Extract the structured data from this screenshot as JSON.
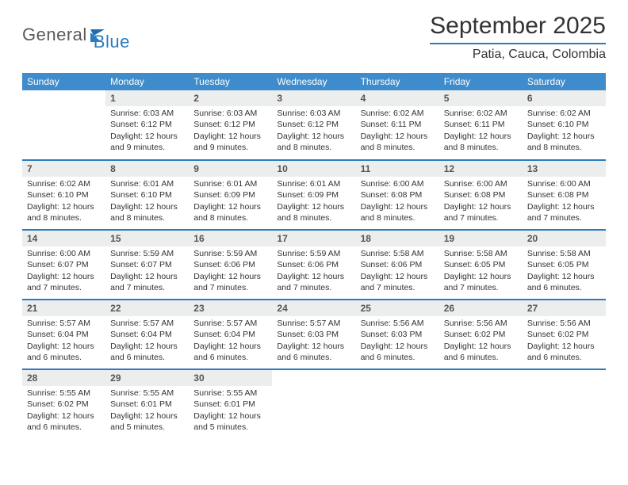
{
  "logo": {
    "text_gray": "General",
    "text_blue": "Blue"
  },
  "header": {
    "month": "September 2025",
    "location": "Patia, Cauca, Colombia"
  },
  "colors": {
    "brand_blue": "#2b7bbf",
    "header_bg": "#3e8ccc",
    "daynum_bg": "#eceded",
    "text": "#333333",
    "logo_gray": "#5a5a5a"
  },
  "weekdays": [
    "Sunday",
    "Monday",
    "Tuesday",
    "Wednesday",
    "Thursday",
    "Friday",
    "Saturday"
  ],
  "weeks": [
    [
      {
        "day": "",
        "lines": []
      },
      {
        "day": "1",
        "lines": [
          "Sunrise: 6:03 AM",
          "Sunset: 6:12 PM",
          "Daylight: 12 hours and 9 minutes."
        ]
      },
      {
        "day": "2",
        "lines": [
          "Sunrise: 6:03 AM",
          "Sunset: 6:12 PM",
          "Daylight: 12 hours and 9 minutes."
        ]
      },
      {
        "day": "3",
        "lines": [
          "Sunrise: 6:03 AM",
          "Sunset: 6:12 PM",
          "Daylight: 12 hours and 8 minutes."
        ]
      },
      {
        "day": "4",
        "lines": [
          "Sunrise: 6:02 AM",
          "Sunset: 6:11 PM",
          "Daylight: 12 hours and 8 minutes."
        ]
      },
      {
        "day": "5",
        "lines": [
          "Sunrise: 6:02 AM",
          "Sunset: 6:11 PM",
          "Daylight: 12 hours and 8 minutes."
        ]
      },
      {
        "day": "6",
        "lines": [
          "Sunrise: 6:02 AM",
          "Sunset: 6:10 PM",
          "Daylight: 12 hours and 8 minutes."
        ]
      }
    ],
    [
      {
        "day": "7",
        "lines": [
          "Sunrise: 6:02 AM",
          "Sunset: 6:10 PM",
          "Daylight: 12 hours and 8 minutes."
        ]
      },
      {
        "day": "8",
        "lines": [
          "Sunrise: 6:01 AM",
          "Sunset: 6:10 PM",
          "Daylight: 12 hours and 8 minutes."
        ]
      },
      {
        "day": "9",
        "lines": [
          "Sunrise: 6:01 AM",
          "Sunset: 6:09 PM",
          "Daylight: 12 hours and 8 minutes."
        ]
      },
      {
        "day": "10",
        "lines": [
          "Sunrise: 6:01 AM",
          "Sunset: 6:09 PM",
          "Daylight: 12 hours and 8 minutes."
        ]
      },
      {
        "day": "11",
        "lines": [
          "Sunrise: 6:00 AM",
          "Sunset: 6:08 PM",
          "Daylight: 12 hours and 8 minutes."
        ]
      },
      {
        "day": "12",
        "lines": [
          "Sunrise: 6:00 AM",
          "Sunset: 6:08 PM",
          "Daylight: 12 hours and 7 minutes."
        ]
      },
      {
        "day": "13",
        "lines": [
          "Sunrise: 6:00 AM",
          "Sunset: 6:08 PM",
          "Daylight: 12 hours and 7 minutes."
        ]
      }
    ],
    [
      {
        "day": "14",
        "lines": [
          "Sunrise: 6:00 AM",
          "Sunset: 6:07 PM",
          "Daylight: 12 hours and 7 minutes."
        ]
      },
      {
        "day": "15",
        "lines": [
          "Sunrise: 5:59 AM",
          "Sunset: 6:07 PM",
          "Daylight: 12 hours and 7 minutes."
        ]
      },
      {
        "day": "16",
        "lines": [
          "Sunrise: 5:59 AM",
          "Sunset: 6:06 PM",
          "Daylight: 12 hours and 7 minutes."
        ]
      },
      {
        "day": "17",
        "lines": [
          "Sunrise: 5:59 AM",
          "Sunset: 6:06 PM",
          "Daylight: 12 hours and 7 minutes."
        ]
      },
      {
        "day": "18",
        "lines": [
          "Sunrise: 5:58 AM",
          "Sunset: 6:06 PM",
          "Daylight: 12 hours and 7 minutes."
        ]
      },
      {
        "day": "19",
        "lines": [
          "Sunrise: 5:58 AM",
          "Sunset: 6:05 PM",
          "Daylight: 12 hours and 7 minutes."
        ]
      },
      {
        "day": "20",
        "lines": [
          "Sunrise: 5:58 AM",
          "Sunset: 6:05 PM",
          "Daylight: 12 hours and 6 minutes."
        ]
      }
    ],
    [
      {
        "day": "21",
        "lines": [
          "Sunrise: 5:57 AM",
          "Sunset: 6:04 PM",
          "Daylight: 12 hours and 6 minutes."
        ]
      },
      {
        "day": "22",
        "lines": [
          "Sunrise: 5:57 AM",
          "Sunset: 6:04 PM",
          "Daylight: 12 hours and 6 minutes."
        ]
      },
      {
        "day": "23",
        "lines": [
          "Sunrise: 5:57 AM",
          "Sunset: 6:04 PM",
          "Daylight: 12 hours and 6 minutes."
        ]
      },
      {
        "day": "24",
        "lines": [
          "Sunrise: 5:57 AM",
          "Sunset: 6:03 PM",
          "Daylight: 12 hours and 6 minutes."
        ]
      },
      {
        "day": "25",
        "lines": [
          "Sunrise: 5:56 AM",
          "Sunset: 6:03 PM",
          "Daylight: 12 hours and 6 minutes."
        ]
      },
      {
        "day": "26",
        "lines": [
          "Sunrise: 5:56 AM",
          "Sunset: 6:02 PM",
          "Daylight: 12 hours and 6 minutes."
        ]
      },
      {
        "day": "27",
        "lines": [
          "Sunrise: 5:56 AM",
          "Sunset: 6:02 PM",
          "Daylight: 12 hours and 6 minutes."
        ]
      }
    ],
    [
      {
        "day": "28",
        "lines": [
          "Sunrise: 5:55 AM",
          "Sunset: 6:02 PM",
          "Daylight: 12 hours and 6 minutes."
        ]
      },
      {
        "day": "29",
        "lines": [
          "Sunrise: 5:55 AM",
          "Sunset: 6:01 PM",
          "Daylight: 12 hours and 5 minutes."
        ]
      },
      {
        "day": "30",
        "lines": [
          "Sunrise: 5:55 AM",
          "Sunset: 6:01 PM",
          "Daylight: 12 hours and 5 minutes."
        ]
      },
      {
        "day": "",
        "lines": []
      },
      {
        "day": "",
        "lines": []
      },
      {
        "day": "",
        "lines": []
      },
      {
        "day": "",
        "lines": []
      }
    ]
  ]
}
